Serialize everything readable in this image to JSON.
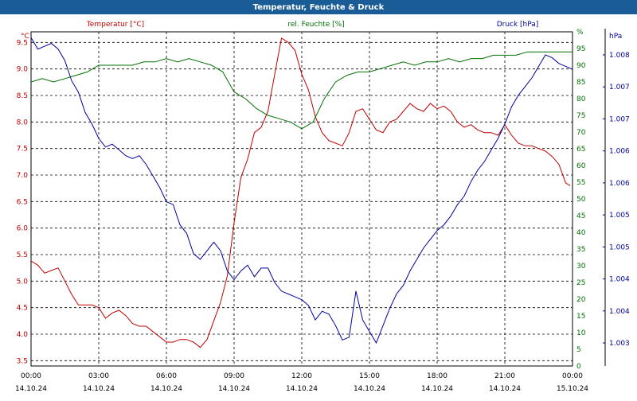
{
  "window": {
    "title": "Temperatur, Feuchte & Druck"
  },
  "chart_data": {
    "type": "line",
    "title": "Temperatur, Feuchte & Druck",
    "grid": true,
    "colors": {
      "temperature": "#c00000",
      "humidity": "#007000",
      "pressure": "#000099",
      "grid": "#000000"
    },
    "axes": {
      "left": {
        "label": "Temperatur [°C]",
        "unit": "°C",
        "range": [
          3.4,
          9.7
        ],
        "ticks": [
          "3.5",
          "4.0",
          "4.5",
          "5.0",
          "5.5",
          "6.0",
          "6.5",
          "7.0",
          "7.5",
          "8.0",
          "8.5",
          "9.0",
          "9.5"
        ]
      },
      "right1": {
        "label": "rel. Feuchte [%]",
        "unit": "%",
        "range": [
          0,
          100
        ],
        "ticks": [
          "0",
          "5",
          "10",
          "15",
          "20",
          "25",
          "30",
          "35",
          "40",
          "45",
          "50",
          "55",
          "60",
          "65",
          "70",
          "75",
          "80",
          "85",
          "90",
          "95",
          "%"
        ]
      },
      "right2": {
        "label": "Druck [hPa]",
        "unit": "hPa",
        "range": [
          1002.6,
          1008.4
        ],
        "ticks": [
          "1.003",
          "1.004",
          "1.004",
          "1.005",
          "1.005",
          "1.006",
          "1.006",
          "1.007",
          "1.007",
          "1.008"
        ]
      },
      "x": {
        "range": [
          0,
          24
        ],
        "ticks": [
          {
            "time": "00:00",
            "date": "14.10.24"
          },
          {
            "time": "03:00",
            "date": "14.10.24"
          },
          {
            "time": "06:00",
            "date": "14.10.24"
          },
          {
            "time": "09:00",
            "date": "14.10.24"
          },
          {
            "time": "12:00",
            "date": "14.10.24"
          },
          {
            "time": "15:00",
            "date": "14.10.24"
          },
          {
            "time": "18:00",
            "date": "14.10.24"
          },
          {
            "time": "21:00",
            "date": "14.10.24"
          },
          {
            "time": "00:00",
            "date": "15.10.24"
          }
        ]
      }
    },
    "series": [
      {
        "name": "Temperatur [°C]",
        "axis": "left",
        "x": [
          0,
          0.3,
          0.6,
          0.9,
          1.2,
          1.5,
          1.8,
          2.1,
          2.4,
          2.7,
          3.0,
          3.3,
          3.6,
          3.9,
          4.2,
          4.5,
          4.8,
          5.1,
          5.4,
          5.7,
          6.0,
          6.3,
          6.6,
          6.9,
          7.2,
          7.5,
          7.8,
          8.1,
          8.4,
          8.7,
          9.0,
          9.3,
          9.6,
          9.9,
          10.2,
          10.5,
          10.8,
          11.1,
          11.4,
          11.7,
          12.0,
          12.3,
          12.6,
          12.9,
          13.2,
          13.5,
          13.8,
          14.1,
          14.4,
          14.7,
          15.0,
          15.3,
          15.6,
          15.9,
          16.2,
          16.5,
          16.8,
          17.1,
          17.4,
          17.7,
          18.0,
          18.3,
          18.6,
          18.9,
          19.2,
          19.5,
          19.8,
          20.1,
          20.4,
          20.7,
          21.0,
          21.3,
          21.6,
          21.9,
          22.2,
          22.5,
          22.8,
          23.1,
          23.4,
          23.7,
          23.9
        ],
        "values": [
          5.38,
          5.3,
          5.15,
          5.2,
          5.25,
          5.0,
          4.75,
          4.55,
          4.55,
          4.55,
          4.5,
          4.3,
          4.4,
          4.45,
          4.35,
          4.2,
          4.15,
          4.15,
          4.05,
          3.95,
          3.85,
          3.85,
          3.9,
          3.9,
          3.85,
          3.75,
          3.9,
          4.25,
          4.6,
          5.1,
          6.1,
          6.95,
          7.3,
          7.8,
          7.9,
          8.2,
          8.9,
          9.58,
          9.5,
          9.35,
          8.9,
          8.6,
          8.1,
          7.8,
          7.65,
          7.6,
          7.55,
          7.8,
          8.2,
          8.25,
          8.05,
          7.85,
          7.8,
          8.0,
          8.05,
          8.2,
          8.35,
          8.25,
          8.2,
          8.35,
          8.25,
          8.3,
          8.2,
          8.0,
          7.9,
          7.95,
          7.85,
          7.8,
          7.8,
          7.75,
          7.95,
          7.75,
          7.6,
          7.55,
          7.55,
          7.5,
          7.45,
          7.35,
          7.2,
          6.85,
          6.8
        ]
      },
      {
        "name": "rel. Feuchte [%]",
        "axis": "right1",
        "x": [
          0,
          0.5,
          1.0,
          1.5,
          2.0,
          2.5,
          3.0,
          3.5,
          4.0,
          4.5,
          5.0,
          5.5,
          6.0,
          6.5,
          7.0,
          7.5,
          8.0,
          8.5,
          9.0,
          9.5,
          10.0,
          10.5,
          11.0,
          11.5,
          12.0,
          12.5,
          13.0,
          13.5,
          14.0,
          14.5,
          15.0,
          15.5,
          16.0,
          16.5,
          17.0,
          17.5,
          18.0,
          18.5,
          19.0,
          19.5,
          20.0,
          20.5,
          21.0,
          21.5,
          22.0,
          22.5,
          23.0,
          23.5,
          24.0
        ],
        "values": [
          85,
          86,
          85,
          86,
          87,
          88,
          90,
          90,
          90,
          90,
          91,
          91,
          92,
          91,
          92,
          91,
          90,
          88,
          82,
          80,
          77,
          75,
          74,
          73,
          71,
          73,
          80,
          85,
          87,
          88,
          88,
          89,
          90,
          91,
          90,
          91,
          91,
          92,
          91,
          92,
          92,
          93,
          93,
          93,
          94,
          94,
          94,
          94,
          94
        ]
      },
      {
        "name": "Druck [hPa]",
        "axis": "right2",
        "x": [
          0,
          0.3,
          0.6,
          0.9,
          1.2,
          1.5,
          1.8,
          2.1,
          2.4,
          2.7,
          3.0,
          3.3,
          3.6,
          3.9,
          4.2,
          4.5,
          4.8,
          5.1,
          5.4,
          5.7,
          6.0,
          6.3,
          6.6,
          6.9,
          7.2,
          7.5,
          7.8,
          8.1,
          8.4,
          8.7,
          9.0,
          9.3,
          9.6,
          9.9,
          10.2,
          10.5,
          10.8,
          11.1,
          11.4,
          11.7,
          12.0,
          12.3,
          12.6,
          12.9,
          13.2,
          13.5,
          13.8,
          14.1,
          14.4,
          14.7,
          15.0,
          15.3,
          15.6,
          15.9,
          16.2,
          16.5,
          16.8,
          17.1,
          17.4,
          17.7,
          18.0,
          18.3,
          18.6,
          18.9,
          19.2,
          19.5,
          19.8,
          20.1,
          20.4,
          20.7,
          21.0,
          21.3,
          21.6,
          21.9,
          22.2,
          22.5,
          22.8,
          23.1,
          23.4,
          23.7,
          24.0
        ],
        "values": [
          1008.3,
          1008.1,
          1008.15,
          1008.2,
          1008.1,
          1007.9,
          1007.55,
          1007.35,
          1007.0,
          1006.8,
          1006.55,
          1006.4,
          1006.45,
          1006.35,
          1006.25,
          1006.2,
          1006.25,
          1006.1,
          1005.9,
          1005.7,
          1005.45,
          1005.4,
          1005.05,
          1004.9,
          1004.55,
          1004.45,
          1004.6,
          1004.75,
          1004.6,
          1004.25,
          1004.1,
          1004.25,
          1004.35,
          1004.15,
          1004.3,
          1004.3,
          1004.05,
          1003.9,
          1003.85,
          1003.8,
          1003.75,
          1003.65,
          1003.4,
          1003.55,
          1003.5,
          1003.3,
          1003.05,
          1003.1,
          1003.9,
          1003.4,
          1003.2,
          1003.0,
          1003.3,
          1003.6,
          1003.85,
          1004.0,
          1004.25,
          1004.45,
          1004.65,
          1004.8,
          1004.95,
          1005.05,
          1005.2,
          1005.4,
          1005.55,
          1005.8,
          1006.0,
          1006.15,
          1006.35,
          1006.55,
          1006.8,
          1007.1,
          1007.3,
          1007.45,
          1007.6,
          1007.8,
          1008.0,
          1007.95,
          1007.85,
          1007.8,
          1007.75
        ]
      }
    ]
  }
}
